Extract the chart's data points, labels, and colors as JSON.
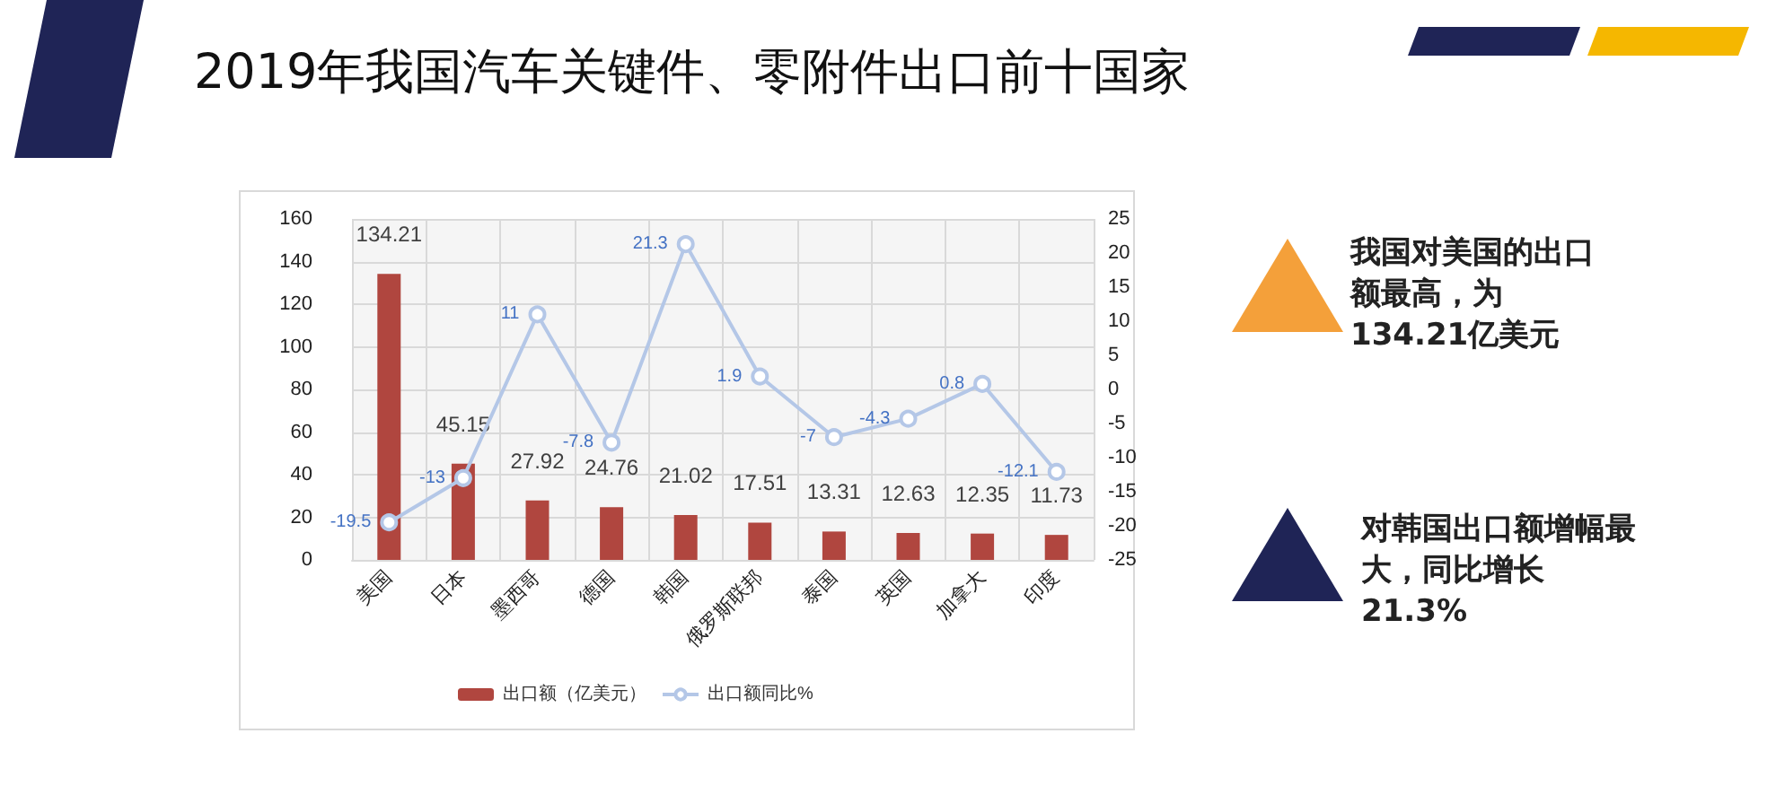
{
  "chart_data": {
    "type": "bar",
    "title": "2019年我国汽车关键件、零附件出口前十国家",
    "annotations": [
      "我国对美国的出口额最高，为134.21亿美元",
      "对韩国出口额增幅最大，同比增长21.3%"
    ],
    "categories": [
      "美国",
      "日本",
      "墨西哥",
      "德国",
      "韩国",
      "俄罗斯联邦",
      "泰国",
      "英国",
      "加拿大",
      "印度"
    ],
    "series": [
      {
        "name": "出口额（亿美元）",
        "color": "#b0463f",
        "values": [
          134.21,
          45.15,
          27.92,
          24.76,
          21.02,
          17.51,
          13.31,
          12.63,
          12.35,
          11.73
        ]
      },
      {
        "name": "出口额同比%",
        "type": "line",
        "axis": "y2",
        "color": "#b4c7e7",
        "values": [
          -19.5,
          -13,
          11,
          -7.8,
          21.3,
          1.9,
          -7,
          -4.3,
          0.8,
          -12.1
        ]
      }
    ],
    "ylim": [
      0,
      160
    ],
    "yticks": [
      0,
      20,
      40,
      60,
      80,
      100,
      120,
      140,
      160
    ],
    "y2lim": [
      -25,
      25
    ],
    "y2ticks": [
      -25,
      -20,
      -15,
      -10,
      -5,
      0,
      5,
      10,
      15,
      20,
      25
    ],
    "grid": true,
    "legend": "bottom",
    "marker": "circle",
    "line_style": "solid",
    "data_labels": true
  }
}
